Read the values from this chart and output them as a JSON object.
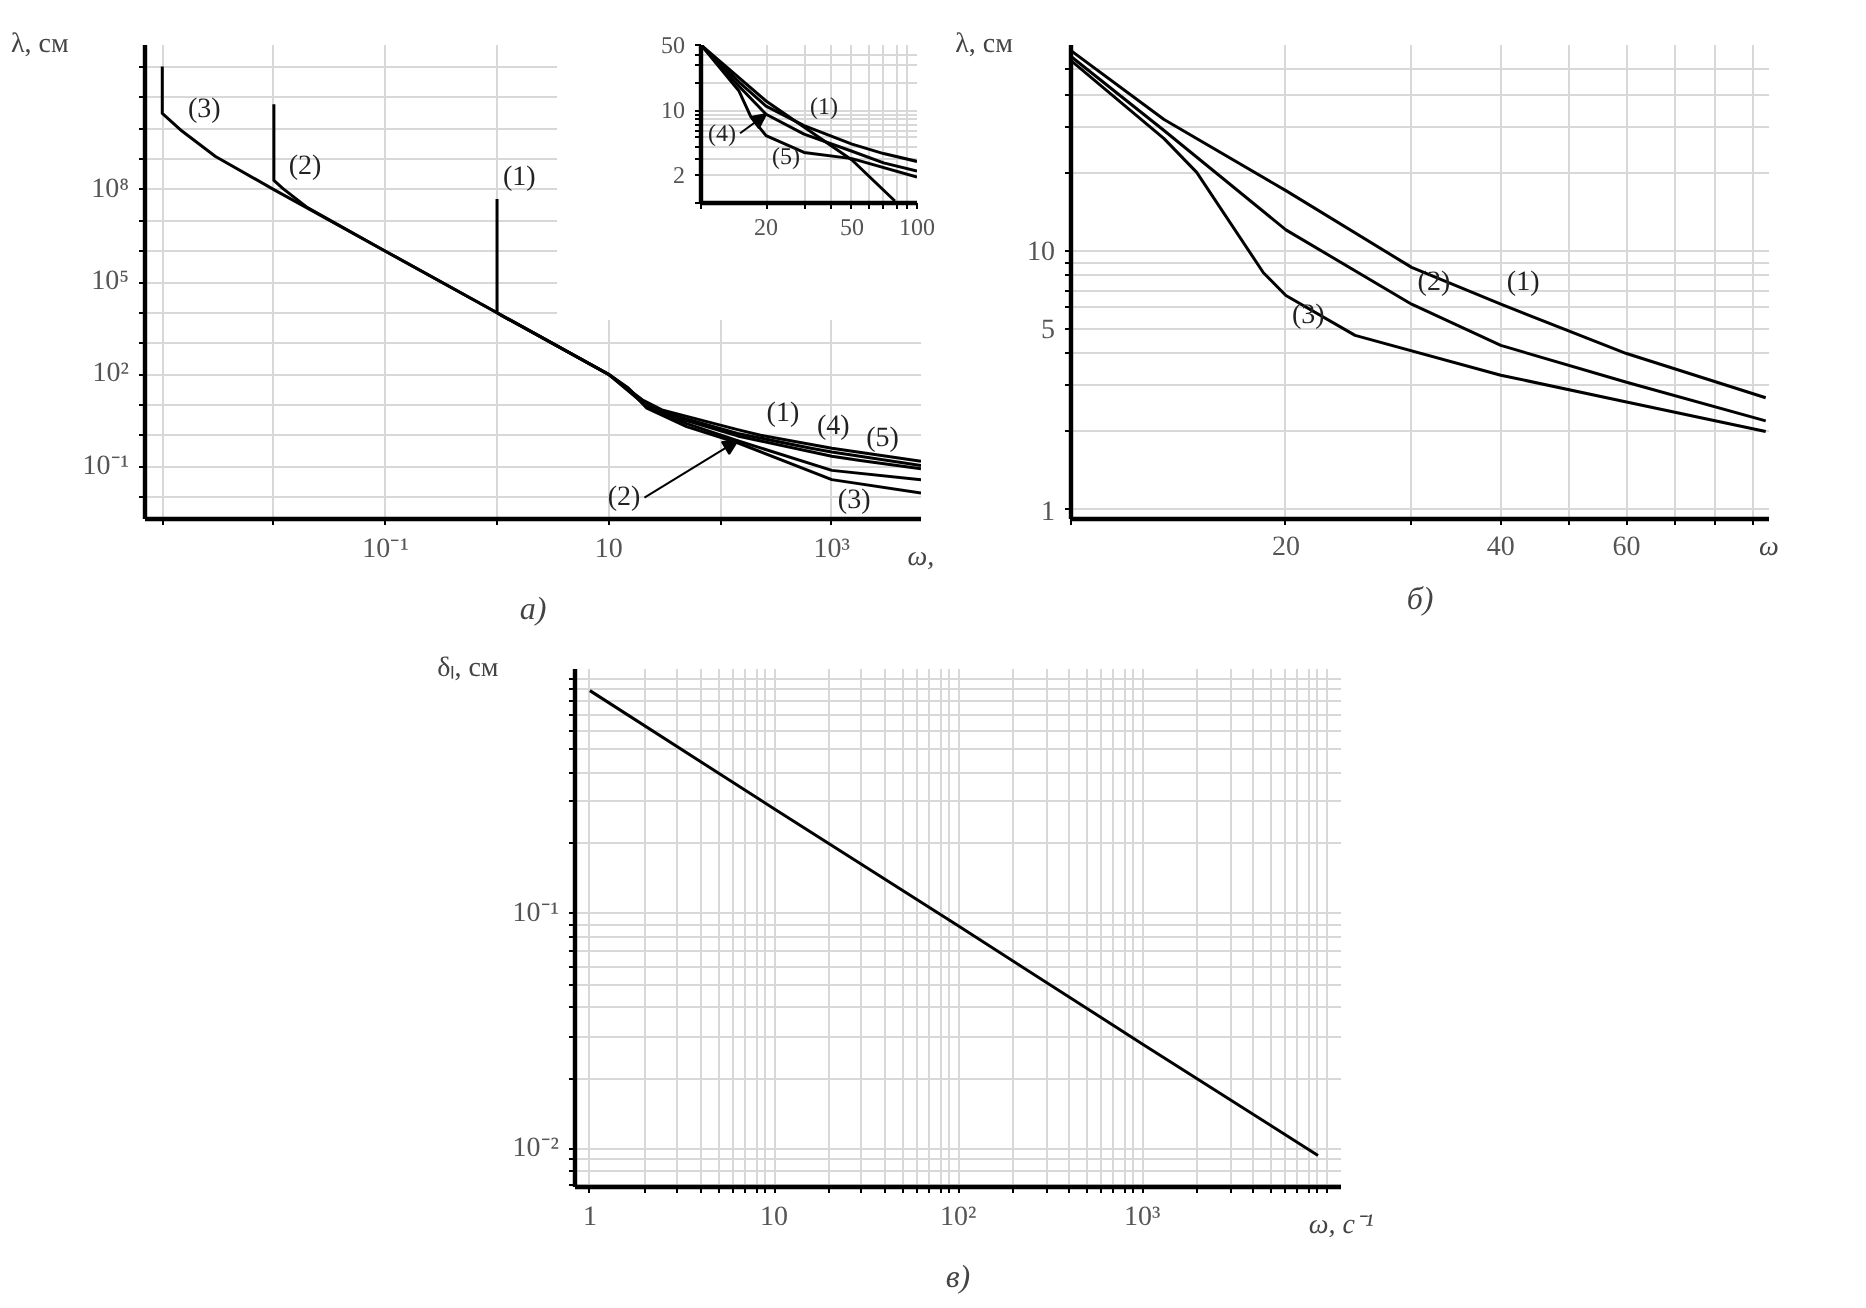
{
  "chart_data": [
    {
      "type": "line",
      "title": "а)",
      "xlabel": "ω,",
      "ylabel": "λ, см",
      "log": "xy",
      "grid": true,
      "line_style": "solid",
      "xlim": [
        0.0007,
        6300
      ],
      "ylim": [
        0.002,
        5000000000000.0
      ],
      "xticks": [
        {
          "value": 0.001,
          "label": null
        },
        {
          "value": 0.01,
          "label": null
        },
        {
          "value": 0.1,
          "label": "10⁻¹"
        },
        {
          "value": 1,
          "label": null
        },
        {
          "value": 10,
          "label": "10"
        },
        {
          "value": 100,
          "label": null
        },
        {
          "value": 1000,
          "label": "10³"
        }
      ],
      "yticks": [
        {
          "value": 0.01,
          "label": null
        },
        {
          "value": 0.1,
          "label": "10⁻¹"
        },
        {
          "value": 1,
          "label": null
        },
        {
          "value": 10,
          "label": null
        },
        {
          "value": 100,
          "label": "10²"
        },
        {
          "value": 1000,
          "label": null
        },
        {
          "value": 10000,
          "label": null
        },
        {
          "value": 100000,
          "label": "10⁵"
        },
        {
          "value": 1000000,
          "label": null
        },
        {
          "value": 10000000,
          "label": null
        },
        {
          "value": 100000000,
          "label": "10⁸"
        },
        {
          "value": 1000000000,
          "label": null
        },
        {
          "value": 10000000000,
          "label": null
        },
        {
          "value": 100000000000,
          "label": null
        },
        {
          "value": 1000000000000,
          "label": null
        }
      ],
      "series": [
        {
          "color": "#000000",
          "x": [
            0.001,
            0.001,
            0.0015,
            0.003,
            0.01,
            0.1,
            1,
            10,
            15,
            22,
            50,
            143,
            1000,
            6300
          ],
          "values": [
            1000000000000.0,
            30000000000.0,
            8000000000.0,
            1200000000.0,
            100000000.0,
            1000000.0,
            10000.0,
            100,
            35,
            8,
            2,
            0.6,
            0.038,
            0.014
          ]
        },
        {
          "color": "#000000",
          "x": [
            0.01,
            0.01,
            0.012,
            0.02,
            0.1,
            1,
            10,
            15,
            22,
            50,
            143,
            1000,
            6300
          ],
          "values": [
            60000000000.0,
            200000000.0,
            110000000.0,
            26000000.0,
            1000000.0,
            10000.0,
            100,
            36,
            9,
            2.5,
            0.7,
            0.076,
            0.038
          ]
        },
        {
          "color": "#000000",
          "x": [
            1,
            1,
            1.1,
            2,
            10,
            20,
            30,
            143,
            230,
            1000,
            6300
          ],
          "values": [
            50000000.0,
            10000.0,
            8000.0,
            2500.0,
            100,
            15,
            7,
            1.6,
            1.05,
            0.4,
            0.15
          ]
        },
        {
          "color": "#000000",
          "x": [
            10,
            20,
            30,
            143,
            650,
            1000,
            6300
          ],
          "values": [
            100,
            13,
            6,
            1.2,
            0.4,
            0.3,
            0.11
          ]
        },
        {
          "color": "#000000",
          "x": [
            10,
            20,
            30,
            143,
            1000,
            1800,
            6300
          ],
          "values": [
            100,
            12,
            5.4,
            1.0,
            0.22,
            0.16,
            0.085
          ]
        }
      ],
      "annotations": [
        {
          "text": "(3)",
          "x": 0.0015,
          "y": 8000000000.0
        },
        {
          "text": "(2)",
          "x": 0.012,
          "y": 110000000.0
        },
        {
          "text": "(1)",
          "x": 1,
          "y": 50000000.0
        },
        {
          "text": "(1)",
          "x": 230,
          "y": 1.05
        },
        {
          "text": "(4)",
          "x": 650,
          "y": 0.4
        },
        {
          "text": "(5)",
          "x": 1800,
          "y": 0.16
        },
        {
          "text": "(2)",
          "x": 143,
          "y": 0.7
        },
        {
          "text": "(3)",
          "x": 1000,
          "y": 0.038
        }
      ]
    },
    {
      "type": "line",
      "log": "xy",
      "grid": true,
      "line_style": "solid",
      "xlim": [
        10,
        100
      ],
      "ylim": [
        1,
        50
      ],
      "xticks": [
        {
          "value": 10,
          "label": null
        },
        {
          "value": 20,
          "label": "20"
        },
        {
          "value": 30,
          "label": null
        },
        {
          "value": 40,
          "label": null
        },
        {
          "value": 50,
          "label": "50"
        },
        {
          "value": 60,
          "label": null
        },
        {
          "value": 70,
          "label": null
        },
        {
          "value": 80,
          "label": null
        },
        {
          "value": 90,
          "label": null
        },
        {
          "value": 100,
          "label": "100"
        }
      ],
      "yticks": [
        {
          "value": 1,
          "label": null
        },
        2,
        {
          "value": 3,
          "label": null
        },
        {
          "value": 4,
          "label": null
        },
        {
          "value": 5,
          "label": null
        },
        {
          "value": 6,
          "label": null
        },
        {
          "value": 7,
          "label": null
        },
        {
          "value": 8,
          "label": null
        },
        {
          "value": 9,
          "label": null
        },
        10,
        {
          "value": 20,
          "label": null
        },
        {
          "value": 30,
          "label": null
        },
        {
          "value": 40,
          "label": null
        },
        50
      ],
      "series": [
        {
          "color": "#000000",
          "x": [
            10,
            15,
            20,
            30,
            50,
            70,
            100
          ],
          "values": [
            50,
            20,
            11,
            6.8,
            4.3,
            3.4,
            2.8
          ]
        },
        {
          "color": "#000000",
          "x": [
            10,
            15,
            20,
            30,
            50,
            70,
            100
          ],
          "values": [
            50,
            18,
            9,
            5.5,
            3.6,
            2.7,
            2.2
          ]
        },
        {
          "color": "#000000",
          "x": [
            10,
            15,
            17,
            20,
            30,
            50,
            100
          ],
          "values": [
            50,
            16,
            8.5,
            5.3,
            3.5,
            3,
            1.9
          ]
        },
        {
          "color": "#000000",
          "x": [
            10,
            20,
            50,
            79
          ],
          "values": [
            50,
            12.5,
            2.9,
            1.05
          ]
        }
      ],
      "annotations": [
        {
          "text": "(1)",
          "x": 30,
          "y": 6.8
        },
        {
          "text": "(4)",
          "x": 20,
          "y": 9
        },
        {
          "text": "(5)",
          "x": 20,
          "y": 5.3
        }
      ]
    },
    {
      "type": "line",
      "title": "б)",
      "xlabel": "ω",
      "ylabel": "λ, см",
      "log": "xy",
      "grid": true,
      "line_style": "solid",
      "xlim": [
        10,
        95
      ],
      "ylim": [
        0.92,
        62
      ],
      "xticks": [
        {
          "value": 10,
          "label": null
        },
        20,
        {
          "value": 30,
          "label": null
        },
        40,
        {
          "value": 50,
          "label": null
        },
        60,
        {
          "value": 70,
          "label": null
        },
        {
          "value": 80,
          "label": null
        },
        {
          "value": 90,
          "label": null
        }
      ],
      "yticks": [
        1,
        {
          "value": 2,
          "label": null
        },
        {
          "value": 3,
          "label": null
        },
        {
          "value": 4,
          "label": null
        },
        5,
        {
          "value": 6,
          "label": null
        },
        {
          "value": 7,
          "label": null
        },
        {
          "value": 8,
          "label": null
        },
        {
          "value": 9,
          "label": null
        },
        10,
        {
          "value": 20,
          "label": null
        },
        {
          "value": 30,
          "label": null
        },
        {
          "value": 40,
          "label": null
        },
        {
          "value": 50,
          "label": null
        }
      ],
      "series": [
        {
          "color": "#000000",
          "x": [
            10,
            13.5,
            20,
            30,
            40,
            60,
            94
          ],
          "values": [
            59,
            32,
            17,
            8.6,
            6.2,
            4.0,
            2.7
          ]
        },
        {
          "color": "#000000",
          "x": [
            10,
            13.5,
            20,
            30,
            40,
            60,
            94
          ],
          "values": [
            56,
            29,
            12,
            6.2,
            4.3,
            3.1,
            2.2
          ]
        },
        {
          "color": "#000000",
          "x": [
            10,
            13.5,
            15,
            18.6,
            20,
            25,
            40,
            60,
            94
          ],
          "values": [
            54,
            27,
            20,
            8.2,
            6.7,
            4.7,
            3.3,
            2.6,
            2.0
          ]
        }
      ],
      "annotations": [
        {
          "text": "(1)",
          "x": 40,
          "y": 6.2
        },
        {
          "text": "(2)",
          "x": 30,
          "y": 6.2
        },
        {
          "text": "(3)",
          "x": 20,
          "y": 6.7
        }
      ]
    },
    {
      "type": "line",
      "title": "в)",
      "xlabel": "ω, с⁻¹",
      "ylabel": "δₗ, см",
      "log": "xy",
      "grid": true,
      "line_style": "solid",
      "xlim": [
        0.83,
        12000
      ],
      "ylim": [
        0.0069,
        1.1
      ],
      "xticks": [
        1,
        {
          "value": 2,
          "label": null
        },
        {
          "value": 3,
          "label": null
        },
        {
          "value": 4,
          "label": null
        },
        {
          "value": 5,
          "label": null
        },
        {
          "value": 6,
          "label": null
        },
        {
          "value": 7,
          "label": null
        },
        {
          "value": 8,
          "label": null
        },
        {
          "value": 9,
          "label": null
        },
        10,
        {
          "value": 20,
          "label": null
        },
        {
          "value": 30,
          "label": null
        },
        {
          "value": 40,
          "label": null
        },
        {
          "value": 50,
          "label": null
        },
        {
          "value": 60,
          "label": null
        },
        {
          "value": 70,
          "label": null
        },
        {
          "value": 80,
          "label": null
        },
        {
          "value": 90,
          "label": null
        },
        {
          "value": 100,
          "label": "10²"
        },
        {
          "value": 200,
          "label": null
        },
        {
          "value": 300,
          "label": null
        },
        {
          "value": 400,
          "label": null
        },
        {
          "value": 500,
          "label": null
        },
        {
          "value": 600,
          "label": null
        },
        {
          "value": 700,
          "label": null
        },
        {
          "value": 800,
          "label": null
        },
        {
          "value": 900,
          "label": null
        },
        {
          "value": 1000,
          "label": "10³"
        },
        {
          "value": 2000,
          "label": null
        },
        {
          "value": 3000,
          "label": null
        },
        {
          "value": 4000,
          "label": null
        },
        {
          "value": 5000,
          "label": null
        },
        {
          "value": 6000,
          "label": null
        },
        {
          "value": 7000,
          "label": null
        },
        {
          "value": 8000,
          "label": null
        },
        {
          "value": 9000,
          "label": null
        },
        {
          "value": 10000,
          "label": null
        }
      ],
      "yticks": [
        {
          "value": 0.007,
          "label": null
        },
        {
          "value": 0.008,
          "label": null
        },
        {
          "value": 0.009,
          "label": null
        },
        {
          "value": 0.01,
          "label": "10⁻²"
        },
        {
          "value": 0.02,
          "label": null
        },
        {
          "value": 0.03,
          "label": null
        },
        {
          "value": 0.04,
          "label": null
        },
        {
          "value": 0.05,
          "label": null
        },
        {
          "value": 0.06,
          "label": null
        },
        {
          "value": 0.07,
          "label": null
        },
        {
          "value": 0.08,
          "label": null
        },
        {
          "value": 0.09,
          "label": null
        },
        {
          "value": 0.1,
          "label": "10⁻¹"
        },
        {
          "value": 0.2,
          "label": null
        },
        {
          "value": 0.3,
          "label": null
        },
        {
          "value": 0.4,
          "label": null
        },
        {
          "value": 0.5,
          "label": null
        },
        {
          "value": 0.6,
          "label": null
        },
        {
          "value": 0.7,
          "label": null
        },
        {
          "value": 0.8,
          "label": null
        },
        {
          "value": 0.9,
          "label": null
        },
        {
          "value": 1.0,
          "label": null
        }
      ],
      "series": [
        {
          "color": "#000000",
          "x": [
            1,
            10,
            100,
            1000,
            9000
          ],
          "values": [
            0.89,
            0.28,
            0.089,
            0.028,
            0.0094
          ]
        }
      ]
    }
  ]
}
